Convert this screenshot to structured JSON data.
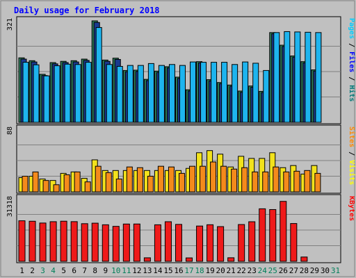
{
  "chart_data": {
    "type": "bar",
    "title": "Daily usage for February 2018",
    "days": [
      "1",
      "2",
      "3",
      "4",
      "5",
      "6",
      "7",
      "8",
      "9",
      "10",
      "11",
      "12",
      "13",
      "14",
      "15",
      "16",
      "17",
      "18",
      "19",
      "20",
      "21",
      "22",
      "23",
      "24",
      "25",
      "26",
      "27",
      "28",
      "29",
      "30",
      "31"
    ],
    "weekend_days": [
      "3",
      "4",
      "10",
      "11",
      "17",
      "18",
      "24",
      "25",
      "31"
    ],
    "panels": [
      {
        "name": "pages-files-hits",
        "axis_max_label": "321",
        "ymax": 321,
        "right_label": [
          {
            "text": "Pages",
            "color": "#00ccff"
          },
          {
            "text": " / ",
            "color": "#000000"
          },
          {
            "text": "Files",
            "color": "#0000ff"
          },
          {
            "text": " / ",
            "color": "#000000"
          },
          {
            "text": "Hits",
            "color": "#007777"
          }
        ],
        "series": [
          {
            "name": "Hits",
            "color": "#2e7d5b",
            "values": [
              204,
              195,
              152,
              189,
              193,
              195,
              200,
              321,
              197,
              203,
              164,
              165,
              136,
              162,
              176,
              143,
              103,
              192,
              135,
              126,
              118,
              99,
              115,
              98,
              284,
              244,
              210,
              192,
              166
            ]
          },
          {
            "name": "Files",
            "color": "#1a3a8f",
            "values": [
              200,
              191,
              148,
              185,
              189,
              191,
              196,
              316,
              193,
              199,
              160,
              161,
              132,
              158,
              172,
              139,
              99,
              188,
              131,
              122,
              114,
              95,
              111,
              94,
              280,
              240,
              206,
              188,
              162
            ]
          },
          {
            "name": "Pages",
            "color": "#1eb4ee",
            "values": [
              190,
              182,
              147,
              179,
              184,
              183,
              190,
              300,
              183,
              177,
              180,
              180,
              186,
              180,
              183,
              180,
              191,
              190,
              190,
              190,
              183,
              191,
              187,
              164,
              284,
              287,
              286,
              285,
              284
            ]
          }
        ]
      },
      {
        "name": "visits-sites",
        "axis_max_label": "88",
        "ymax": 88,
        "right_label": [
          {
            "text": "Sites",
            "color": "#ff8800"
          },
          {
            "text": " / ",
            "color": "#000000"
          },
          {
            "text": "Visits",
            "color": "#ffff00"
          }
        ],
        "series": [
          {
            "name": "Visits",
            "color": "#f2e21c",
            "values": [
              20,
              22,
              18,
              16,
              26,
              28,
              19,
              45,
              30,
              30,
              30,
              30,
              30,
              30,
              30,
              30,
              33,
              55,
              58,
              53,
              35,
              50,
              47,
              47,
              55,
              34,
              37,
              25,
              37
            ]
          },
          {
            "name": "Sites",
            "color": "#f48a1c",
            "values": [
              22,
              28,
              16,
              10,
              24,
              28,
              14,
              36,
              27,
              18,
              35,
              34,
              22,
              36,
              35,
              26,
              36,
              36,
              42,
              36,
              32,
              34,
              28,
              28,
              35,
              28,
              29,
              30,
              26
            ]
          }
        ]
      },
      {
        "name": "kbytes",
        "axis_max_label": "31318",
        "ymax": 31318,
        "right_label": [
          {
            "text": "KBytes",
            "color": "#ff0000"
          }
        ],
        "series": [
          {
            "name": "KBytes",
            "color": "#ef1a1a",
            "values": [
              20310,
              20080,
              19180,
              19860,
              20100,
              19880,
              18860,
              19110,
              18310,
              17520,
              18680,
              18700,
              1770,
              18300,
              19840,
              18500,
              1720,
              17680,
              18330,
              17390,
              1790,
              18430,
              19830,
              26310,
              25930,
              30020,
              18940,
              2160,
              0
            ]
          }
        ]
      }
    ]
  }
}
